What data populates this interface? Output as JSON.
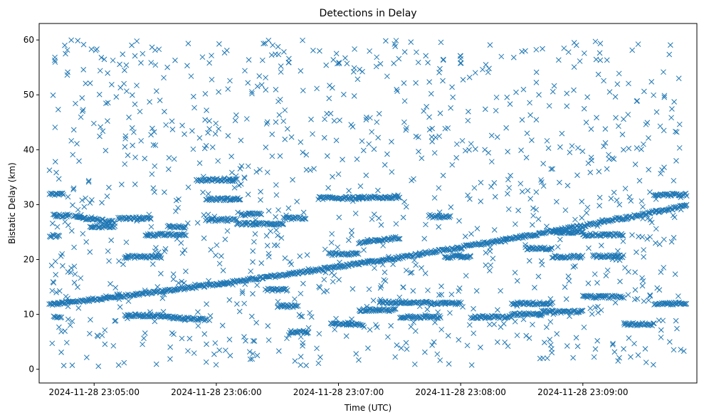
{
  "chart_data": {
    "type": "scatter",
    "title": "Detections in Delay",
    "xlabel": "Time (UTC)",
    "ylabel": "Bistatic Delay (km)",
    "x_time_range": [
      "2024-11-28 23:04:38",
      "2024-11-28 23:09:51"
    ],
    "xlim": [
      "2024-11-28 23:04:33",
      "2024-11-28 23:09:56"
    ],
    "ylim": [
      -2.5,
      63
    ],
    "x_ticks": [
      "2024-11-28 23:05:00",
      "2024-11-28 23:06:00",
      "2024-11-28 23:07:00",
      "2024-11-28 23:08:00",
      "2024-11-28 23:09:00"
    ],
    "y_ticks": [
      0,
      10,
      20,
      30,
      40,
      50,
      60
    ],
    "grid": false,
    "marker": "x",
    "color": "#1f77b4",
    "tracks": [
      {
        "time_start": "2024-11-28 23:04:38",
        "time_end": "2024-11-28 23:09:51",
        "y_start": 11.8,
        "y_mid": 19.5,
        "y_end": 29.8,
        "note_shape": "rising curve"
      },
      {
        "time_start": "2024-11-28 23:04:38",
        "time_end": "2024-11-28 23:04:45",
        "y": 31.9
      },
      {
        "time_start": "2024-11-28 23:04:40",
        "time_end": "2024-11-28 23:04:48",
        "y": 28.0
      },
      {
        "time_start": "2024-11-28 23:04:50",
        "time_end": "2024-11-28 23:05:10",
        "y_start": 27.8,
        "y_end": 26.8
      },
      {
        "time_start": "2024-11-28 23:04:58",
        "time_end": "2024-11-28 23:05:10",
        "y": 26.0
      },
      {
        "time_start": "2024-11-28 23:05:12",
        "time_end": "2024-11-28 23:05:28",
        "y": 27.5
      },
      {
        "time_start": "2024-11-28 23:05:25",
        "time_end": "2024-11-28 23:05:45",
        "y": 24.5
      },
      {
        "time_start": "2024-11-28 23:05:36",
        "time_end": "2024-11-28 23:05:45",
        "y": 26.0
      },
      {
        "time_start": "2024-11-28 23:05:15",
        "time_end": "2024-11-28 23:05:33",
        "y": 20.5
      },
      {
        "time_start": "2024-11-28 23:04:38",
        "time_end": "2024-11-28 23:04:43",
        "y": 24.3
      },
      {
        "time_start": "2024-11-28 23:05:15",
        "time_end": "2024-11-28 23:05:33",
        "y": 9.8
      },
      {
        "time_start": "2024-11-28 23:05:33",
        "time_end": "2024-11-28 23:05:55",
        "y_start": 9.6,
        "y_end": 9.0
      },
      {
        "time_start": "2024-11-28 23:04:40",
        "time_end": "2024-11-28 23:04:44",
        "y": 9.6
      },
      {
        "time_start": "2024-11-28 23:05:50",
        "time_end": "2024-11-28 23:06:10",
        "y": 34.5
      },
      {
        "time_start": "2024-11-28 23:05:55",
        "time_end": "2024-11-28 23:06:12",
        "y": 31.0
      },
      {
        "time_start": "2024-11-28 23:05:55",
        "time_end": "2024-11-28 23:06:10",
        "y": 27.2
      },
      {
        "time_start": "2024-11-28 23:06:10",
        "time_end": "2024-11-28 23:06:33",
        "y": 26.5
      },
      {
        "time_start": "2024-11-28 23:06:12",
        "time_end": "2024-11-28 23:06:22",
        "y": 28.2
      },
      {
        "time_start": "2024-11-28 23:06:33",
        "time_end": "2024-11-28 23:06:44",
        "y": 27.5
      },
      {
        "time_start": "2024-11-28 23:06:25",
        "time_end": "2024-11-28 23:06:35",
        "y": 14.5
      },
      {
        "time_start": "2024-11-28 23:06:30",
        "time_end": "2024-11-28 23:06:40",
        "y": 11.5
      },
      {
        "time_start": "2024-11-28 23:06:36",
        "time_end": "2024-11-28 23:06:45",
        "y": 6.8
      },
      {
        "time_start": "2024-11-28 23:06:50",
        "time_end": "2024-11-28 23:07:12",
        "y": 31.2
      },
      {
        "time_start": "2024-11-28 23:06:55",
        "time_end": "2024-11-28 23:07:10",
        "y": 21.0
      },
      {
        "time_start": "2024-11-28 23:06:56",
        "time_end": "2024-11-28 23:07:06",
        "y": 8.3
      },
      {
        "time_start": "2024-11-28 23:07:05",
        "time_end": "2024-11-28 23:07:12",
        "y": 8.2
      },
      {
        "time_start": "2024-11-28 23:07:10",
        "time_end": "2024-11-28 23:07:30",
        "y": 31.3
      },
      {
        "time_start": "2024-11-28 23:07:10",
        "time_end": "2024-11-28 23:07:30",
        "y_start": 23.0,
        "y_end": 24.0
      },
      {
        "time_start": "2024-11-28 23:07:10",
        "time_end": "2024-11-28 23:07:28",
        "y": 10.8
      },
      {
        "time_start": "2024-11-28 23:07:20",
        "time_end": "2024-11-28 23:07:45",
        "y": 12.2
      },
      {
        "time_start": "2024-11-28 23:07:45",
        "time_end": "2024-11-28 23:07:55",
        "y": 27.8
      },
      {
        "time_start": "2024-11-28 23:07:30",
        "time_end": "2024-11-28 23:07:50",
        "y": 9.5
      },
      {
        "time_start": "2024-11-28 23:07:45",
        "time_end": "2024-11-28 23:08:00",
        "y": 12.0
      },
      {
        "time_start": "2024-11-28 23:07:52",
        "time_end": "2024-11-28 23:08:05",
        "y": 20.5
      },
      {
        "time_start": "2024-11-28 23:08:05",
        "time_end": "2024-11-28 23:08:25",
        "y": 9.5
      },
      {
        "time_start": "2024-11-28 23:08:25",
        "time_end": "2024-11-28 23:08:40",
        "y": 10.0
      },
      {
        "time_start": "2024-11-28 23:08:25",
        "time_end": "2024-11-28 23:08:45",
        "y": 12.0
      },
      {
        "time_start": "2024-11-28 23:08:32",
        "time_end": "2024-11-28 23:08:45",
        "y": 22.0
      },
      {
        "time_start": "2024-11-28 23:08:45",
        "time_end": "2024-11-28 23:09:00",
        "y": 25.0
      },
      {
        "time_start": "2024-11-28 23:08:45",
        "time_end": "2024-11-28 23:09:00",
        "y": 20.5
      },
      {
        "time_start": "2024-11-28 23:08:40",
        "time_end": "2024-11-28 23:09:00",
        "y": 10.5
      },
      {
        "time_start": "2024-11-28 23:09:00",
        "time_end": "2024-11-28 23:09:20",
        "y": 24.5
      },
      {
        "time_start": "2024-11-28 23:09:05",
        "time_end": "2024-11-28 23:09:20",
        "y": 20.6
      },
      {
        "time_start": "2024-11-28 23:09:00",
        "time_end": "2024-11-28 23:09:20",
        "y": 13.2
      },
      {
        "time_start": "2024-11-28 23:09:20",
        "time_end": "2024-11-28 23:09:35",
        "y": 8.2
      },
      {
        "time_start": "2024-11-28 23:09:35",
        "time_end": "2024-11-28 23:09:51",
        "y": 31.8
      },
      {
        "time_start": "2024-11-28 23:09:35",
        "time_end": "2024-11-28 23:09:51",
        "y": 12.0
      }
    ],
    "clutter": {
      "count": 1100,
      "y_range": [
        0.5,
        60
      ]
    }
  }
}
